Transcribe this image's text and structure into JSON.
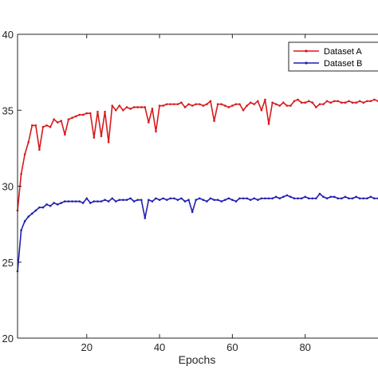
{
  "chart_data": {
    "type": "line",
    "title": "",
    "xlabel": "Epochs",
    "ylabel": "",
    "xlim": [
      1,
      100
    ],
    "ylim": [
      20,
      40
    ],
    "xticks": [
      20,
      40,
      60,
      80
    ],
    "yticks": [
      20,
      25,
      30,
      35,
      40
    ],
    "ytick_labels": [
      "20",
      "25",
      "30",
      "35",
      "40"
    ],
    "grid": false,
    "legend_position": "top-right",
    "series": [
      {
        "name": "Dataset A",
        "color": "#d7191c",
        "marker": "dot",
        "x": [
          1,
          2,
          3,
          4,
          5,
          6,
          7,
          8,
          9,
          10,
          11,
          12,
          13,
          14,
          15,
          16,
          17,
          18,
          19,
          20,
          21,
          22,
          23,
          24,
          25,
          26,
          27,
          28,
          29,
          30,
          31,
          32,
          33,
          34,
          35,
          36,
          37,
          38,
          39,
          40,
          41,
          42,
          43,
          44,
          45,
          46,
          47,
          48,
          49,
          50,
          51,
          52,
          53,
          54,
          55,
          56,
          57,
          58,
          59,
          60,
          61,
          62,
          63,
          64,
          65,
          66,
          67,
          68,
          69,
          70,
          71,
          72,
          73,
          74,
          75,
          76,
          77,
          78,
          79,
          80,
          81,
          82,
          83,
          84,
          85,
          86,
          87,
          88,
          89,
          90,
          91,
          92,
          93,
          94,
          95,
          96,
          97,
          98,
          99,
          100
        ],
        "y": [
          28.4,
          30.8,
          32.1,
          32.9,
          34.0,
          34.0,
          32.4,
          33.9,
          34.0,
          33.9,
          34.4,
          34.2,
          34.3,
          33.4,
          34.4,
          34.5,
          34.6,
          34.7,
          34.7,
          34.8,
          34.8,
          33.2,
          34.9,
          33.3,
          34.9,
          32.9,
          35.3,
          35.0,
          35.3,
          35.0,
          35.2,
          35.1,
          35.2,
          35.2,
          35.2,
          35.2,
          34.2,
          35.1,
          33.6,
          35.3,
          35.3,
          35.4,
          35.4,
          35.4,
          35.4,
          35.5,
          35.2,
          35.4,
          35.3,
          35.4,
          35.4,
          35.3,
          35.4,
          35.6,
          34.3,
          35.4,
          35.4,
          35.3,
          35.2,
          35.3,
          35.4,
          35.4,
          35.0,
          35.3,
          35.5,
          35.4,
          35.6,
          35.0,
          35.7,
          34.1,
          35.5,
          35.4,
          35.3,
          35.5,
          35.3,
          35.3,
          35.6,
          35.7,
          35.5,
          35.5,
          35.6,
          35.5,
          35.2,
          35.4,
          35.4,
          35.6,
          35.5,
          35.6,
          35.6,
          35.5,
          35.5,
          35.6,
          35.5,
          35.5,
          35.6,
          35.5,
          35.6,
          35.6,
          35.7,
          35.6
        ]
      },
      {
        "name": "Dataset B",
        "color": "#1f1fb4",
        "marker": "dot",
        "x": [
          1,
          2,
          3,
          4,
          5,
          6,
          7,
          8,
          9,
          10,
          11,
          12,
          13,
          14,
          15,
          16,
          17,
          18,
          19,
          20,
          21,
          22,
          23,
          24,
          25,
          26,
          27,
          28,
          29,
          30,
          31,
          32,
          33,
          34,
          35,
          36,
          37,
          38,
          39,
          40,
          41,
          42,
          43,
          44,
          45,
          46,
          47,
          48,
          49,
          50,
          51,
          52,
          53,
          54,
          55,
          56,
          57,
          58,
          59,
          60,
          61,
          62,
          63,
          64,
          65,
          66,
          67,
          68,
          69,
          70,
          71,
          72,
          73,
          74,
          75,
          76,
          77,
          78,
          79,
          80,
          81,
          82,
          83,
          84,
          85,
          86,
          87,
          88,
          89,
          90,
          91,
          92,
          93,
          94,
          95,
          96,
          97,
          98,
          99,
          100
        ],
        "y": [
          24.4,
          27.1,
          27.7,
          28.0,
          28.2,
          28.4,
          28.6,
          28.6,
          28.8,
          28.7,
          28.9,
          28.8,
          28.9,
          29.0,
          29.0,
          29.0,
          29.0,
          29.0,
          28.9,
          29.2,
          28.9,
          29.0,
          29.0,
          29.0,
          29.1,
          29.0,
          29.2,
          29.0,
          29.1,
          29.1,
          29.1,
          29.2,
          29.0,
          29.1,
          29.1,
          27.9,
          29.1,
          29.0,
          29.2,
          29.1,
          29.2,
          29.1,
          29.2,
          29.2,
          29.1,
          29.2,
          29.0,
          29.1,
          28.3,
          29.1,
          29.2,
          29.1,
          29.0,
          29.2,
          29.1,
          29.1,
          29.0,
          29.1,
          29.2,
          29.1,
          29.0,
          29.2,
          29.2,
          29.2,
          29.1,
          29.2,
          29.1,
          29.2,
          29.2,
          29.2,
          29.2,
          29.3,
          29.2,
          29.3,
          29.4,
          29.3,
          29.2,
          29.2,
          29.2,
          29.3,
          29.2,
          29.2,
          29.2,
          29.5,
          29.3,
          29.2,
          29.3,
          29.3,
          29.2,
          29.2,
          29.3,
          29.2,
          29.2,
          29.3,
          29.2,
          29.2,
          29.2,
          29.3,
          29.2,
          29.2
        ]
      }
    ]
  }
}
